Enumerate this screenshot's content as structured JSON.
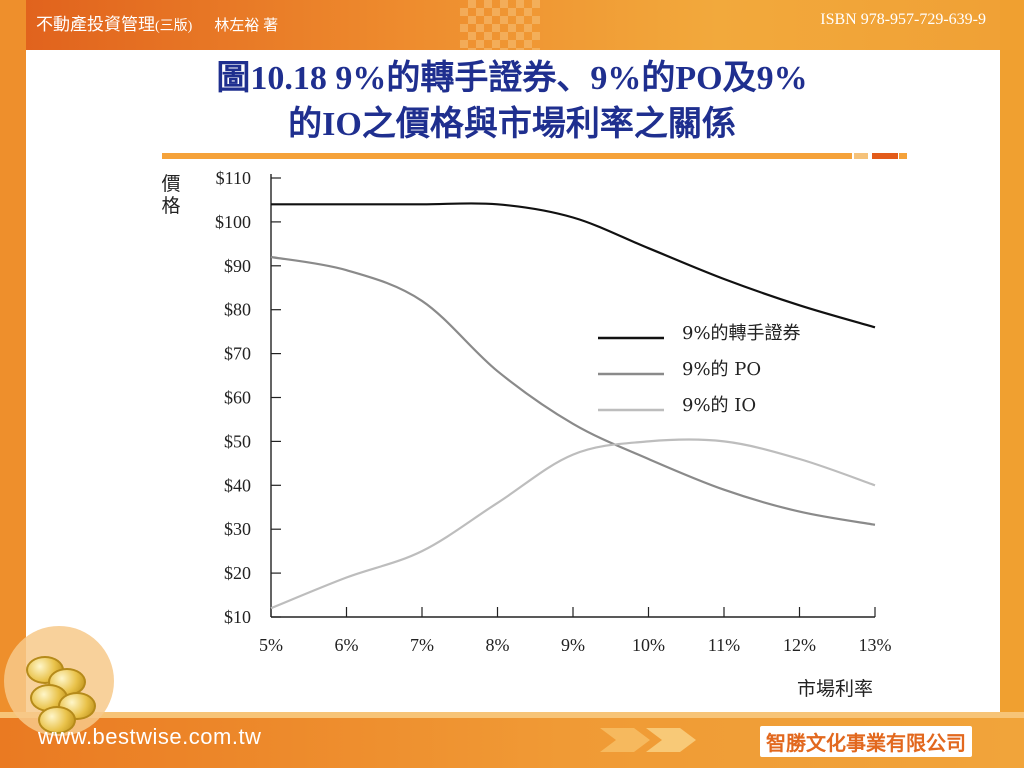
{
  "header": {
    "book_title": "不動產投資管理",
    "edition": "(三版)",
    "author": "林左裕 著",
    "isbn": "ISBN 978-957-729-639-9"
  },
  "slide": {
    "title_line1": "圖10.18 9%的轉手證券、9%的PO及9%",
    "title_line2": "的IO之價格與市場利率之關係"
  },
  "footer": {
    "url": "www.bestwise.com.tw",
    "publisher": "智勝文化事業有限公司"
  },
  "colors": {
    "frame_orange": "#ee8f2c",
    "title_blue": "#1f2f8f",
    "pt_series": "#111111",
    "po_series": "#8a8a8a",
    "io_series": "#bdbdbd"
  },
  "chart_data": {
    "type": "line",
    "xlabel": "市場利率",
    "ylabel": "價格",
    "x": [
      5,
      6,
      7,
      8,
      9,
      10,
      11,
      12,
      13
    ],
    "x_tick_labels": [
      "5%",
      "6%",
      "7%",
      "8%",
      "9%",
      "10%",
      "11%",
      "12%",
      "13%"
    ],
    "y_ticks": [
      10,
      20,
      30,
      40,
      50,
      60,
      70,
      80,
      90,
      100,
      110
    ],
    "y_tick_labels": [
      "$10",
      "$20",
      "$30",
      "$40",
      "$50",
      "$60",
      "$70",
      "$80",
      "$90",
      "$100",
      "$110"
    ],
    "xlim": [
      5,
      13
    ],
    "ylim": [
      10,
      110
    ],
    "grid": false,
    "legend_position": "center-right",
    "series": [
      {
        "name": "9%的轉手證券",
        "color": "#111111",
        "values": [
          104,
          104,
          104,
          104,
          101,
          94,
          87,
          81,
          76
        ]
      },
      {
        "name": "9%的 PO",
        "color": "#8a8a8a",
        "values": [
          92,
          89,
          82,
          66,
          54,
          46,
          39,
          34,
          31
        ]
      },
      {
        "name": "9%的 IO",
        "color": "#bdbdbd",
        "values": [
          12,
          19,
          25,
          36,
          47,
          50,
          50,
          46,
          40
        ]
      }
    ]
  }
}
